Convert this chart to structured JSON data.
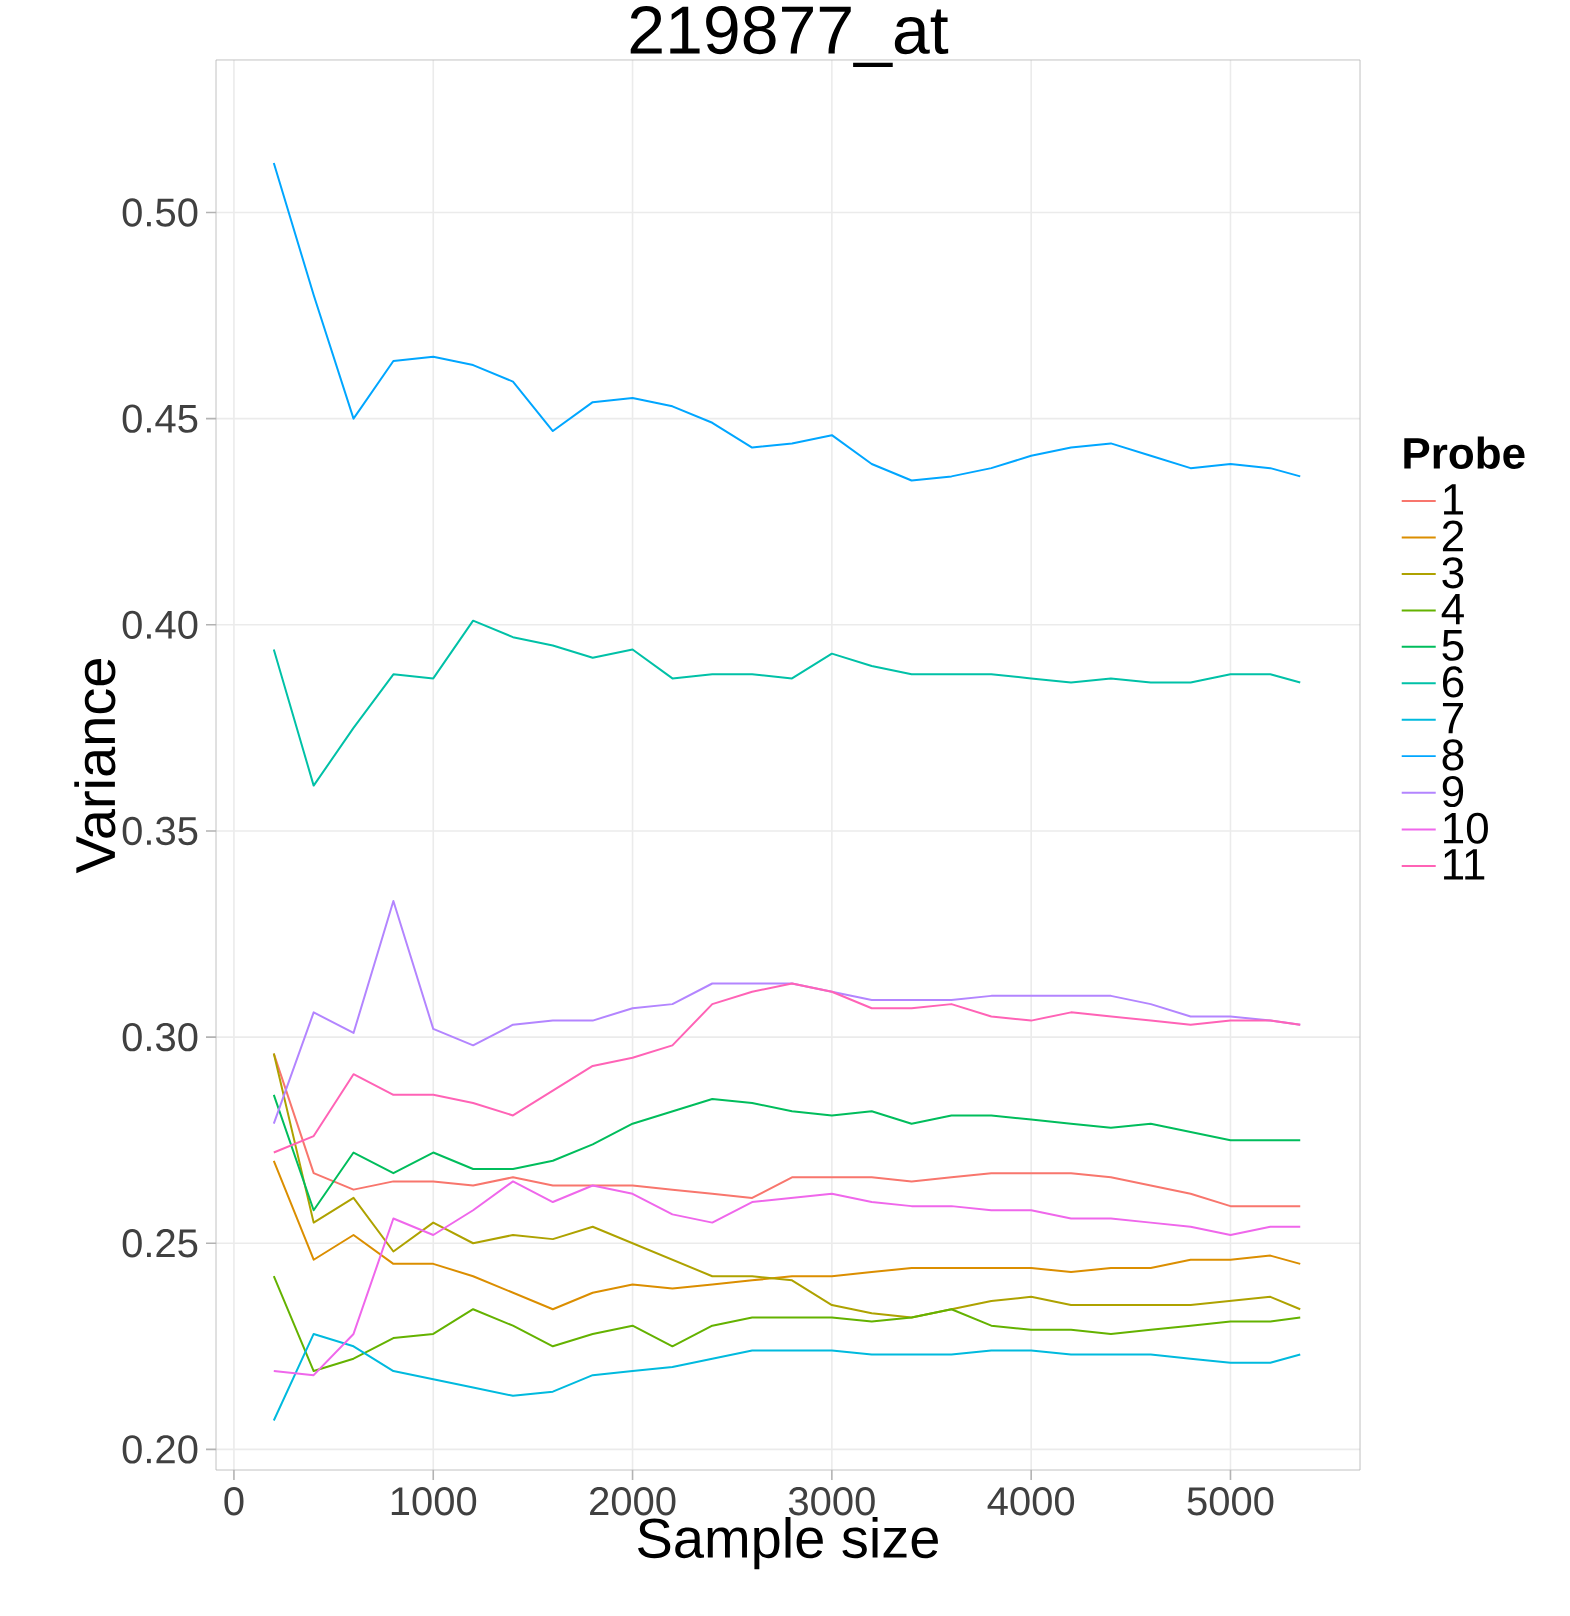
{
  "chart_data": {
    "type": "line",
    "title": "219877_at",
    "xlabel": "Sample size",
    "ylabel": "Variance",
    "legend_title": "Probe",
    "x": [
      200,
      400,
      600,
      800,
      1000,
      1200,
      1400,
      1600,
      1800,
      2000,
      2200,
      2400,
      2600,
      2800,
      3000,
      3200,
      3400,
      3600,
      3800,
      4000,
      4200,
      4400,
      4600,
      4800,
      5000,
      5200,
      5350
    ],
    "series": [
      {
        "name": "1",
        "color": "#f8766d",
        "values": [
          0.296,
          0.267,
          0.263,
          0.265,
          0.265,
          0.264,
          0.266,
          0.264,
          0.264,
          0.264,
          0.263,
          0.262,
          0.261,
          0.266,
          0.266,
          0.266,
          0.265,
          0.266,
          0.267,
          0.267,
          0.267,
          0.266,
          0.264,
          0.262,
          0.259,
          0.259,
          0.259
        ]
      },
      {
        "name": "2",
        "color": "#db8e00",
        "values": [
          0.27,
          0.246,
          0.252,
          0.245,
          0.245,
          0.242,
          0.238,
          0.234,
          0.238,
          0.24,
          0.239,
          0.24,
          0.241,
          0.242,
          0.242,
          0.243,
          0.244,
          0.244,
          0.244,
          0.244,
          0.243,
          0.244,
          0.244,
          0.246,
          0.246,
          0.247,
          0.245
        ]
      },
      {
        "name": "3",
        "color": "#aea200",
        "values": [
          0.296,
          0.255,
          0.261,
          0.248,
          0.255,
          0.25,
          0.252,
          0.251,
          0.254,
          0.25,
          0.246,
          0.242,
          0.242,
          0.241,
          0.235,
          0.233,
          0.232,
          0.234,
          0.236,
          0.237,
          0.235,
          0.235,
          0.235,
          0.235,
          0.236,
          0.237,
          0.234
        ]
      },
      {
        "name": "4",
        "color": "#64b200",
        "values": [
          0.242,
          0.219,
          0.222,
          0.227,
          0.228,
          0.234,
          0.23,
          0.225,
          0.228,
          0.23,
          0.225,
          0.23,
          0.232,
          0.232,
          0.232,
          0.231,
          0.232,
          0.234,
          0.23,
          0.229,
          0.229,
          0.228,
          0.229,
          0.23,
          0.231,
          0.231,
          0.232
        ]
      },
      {
        "name": "5",
        "color": "#00bd5c",
        "values": [
          0.286,
          0.258,
          0.272,
          0.267,
          0.272,
          0.268,
          0.268,
          0.27,
          0.274,
          0.279,
          0.282,
          0.285,
          0.284,
          0.282,
          0.281,
          0.282,
          0.279,
          0.281,
          0.281,
          0.28,
          0.279,
          0.278,
          0.279,
          0.277,
          0.275,
          0.275,
          0.275
        ]
      },
      {
        "name": "6",
        "color": "#00c1a7",
        "values": [
          0.394,
          0.361,
          0.375,
          0.388,
          0.387,
          0.401,
          0.397,
          0.395,
          0.392,
          0.394,
          0.387,
          0.388,
          0.388,
          0.387,
          0.393,
          0.39,
          0.388,
          0.388,
          0.388,
          0.387,
          0.386,
          0.387,
          0.386,
          0.386,
          0.388,
          0.388,
          0.386
        ]
      },
      {
        "name": "7",
        "color": "#00bade",
        "values": [
          0.207,
          0.228,
          0.225,
          0.219,
          0.217,
          0.215,
          0.213,
          0.214,
          0.218,
          0.219,
          0.22,
          0.222,
          0.224,
          0.224,
          0.224,
          0.223,
          0.223,
          0.223,
          0.224,
          0.224,
          0.223,
          0.223,
          0.223,
          0.222,
          0.221,
          0.221,
          0.223
        ]
      },
      {
        "name": "8",
        "color": "#00a6ff",
        "values": [
          0.512,
          0.48,
          0.45,
          0.464,
          0.465,
          0.463,
          0.459,
          0.447,
          0.454,
          0.455,
          0.453,
          0.449,
          0.443,
          0.444,
          0.446,
          0.439,
          0.435,
          0.436,
          0.438,
          0.441,
          0.443,
          0.444,
          0.441,
          0.438,
          0.439,
          0.438,
          0.436
        ]
      },
      {
        "name": "9",
        "color": "#b385ff",
        "values": [
          0.279,
          0.306,
          0.301,
          0.333,
          0.302,
          0.298,
          0.303,
          0.304,
          0.304,
          0.307,
          0.308,
          0.313,
          0.313,
          0.313,
          0.311,
          0.309,
          0.309,
          0.309,
          0.31,
          0.31,
          0.31,
          0.31,
          0.308,
          0.305,
          0.305,
          0.304,
          0.303
        ]
      },
      {
        "name": "10",
        "color": "#ef67eb",
        "values": [
          0.219,
          0.218,
          0.228,
          0.256,
          0.252,
          0.258,
          0.265,
          0.26,
          0.264,
          0.262,
          0.257,
          0.255,
          0.26,
          0.261,
          0.262,
          0.26,
          0.259,
          0.259,
          0.258,
          0.258,
          0.256,
          0.256,
          0.255,
          0.254,
          0.252,
          0.254,
          0.254
        ]
      },
      {
        "name": "11",
        "color": "#ff63b6",
        "values": [
          0.272,
          0.276,
          0.291,
          0.286,
          0.286,
          0.284,
          0.281,
          0.287,
          0.293,
          0.295,
          0.298,
          0.308,
          0.311,
          0.313,
          0.311,
          0.307,
          0.307,
          0.308,
          0.305,
          0.304,
          0.306,
          0.305,
          0.304,
          0.303,
          0.304,
          0.304,
          0.303
        ]
      }
    ],
    "xlim": [
      -90,
      5650
    ],
    "ylim": [
      0.195,
      0.537
    ],
    "xticks": [
      0,
      1000,
      2000,
      3000,
      4000,
      5000
    ],
    "yticks": [
      {
        "value": 0.2,
        "label": "0.20"
      },
      {
        "value": 0.25,
        "label": "0.25"
      },
      {
        "value": 0.3,
        "label": "0.30"
      },
      {
        "value": 0.35,
        "label": "0.35"
      },
      {
        "value": 0.4,
        "label": "0.40"
      },
      {
        "value": 0.45,
        "label": "0.45"
      },
      {
        "value": 0.5,
        "label": "0.50"
      }
    ],
    "grid": true,
    "legend": "right",
    "marker": "none",
    "line_style": "solid"
  }
}
